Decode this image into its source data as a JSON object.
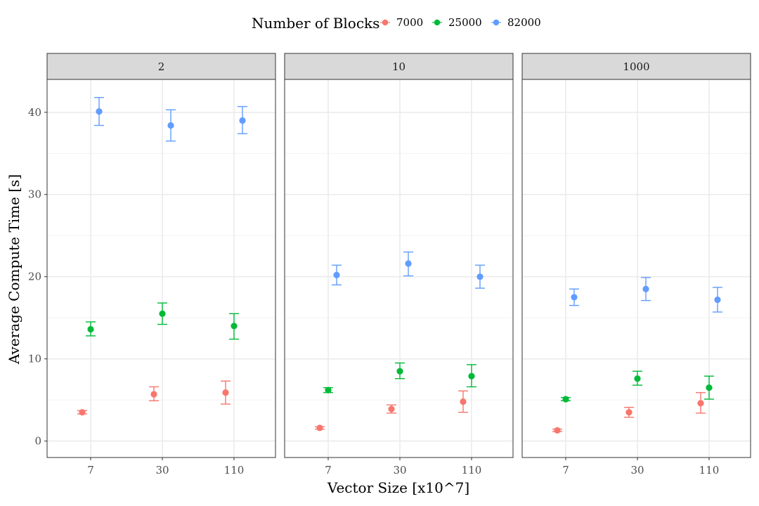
{
  "chart_data": {
    "type": "scatter",
    "legend": {
      "title": "Number of Blocks",
      "position": "top",
      "items": [
        {
          "label": "7000",
          "color": "#F8766D"
        },
        {
          "label": "25000",
          "color": "#00BA38"
        },
        {
          "label": "82000",
          "color": "#619CFF"
        }
      ]
    },
    "xlabel": "Vector Size [x10^7]",
    "ylabel": "Average Compute Time [s]",
    "categories": [
      "7",
      "30",
      "110"
    ],
    "ylim": [
      -2,
      44
    ],
    "yticks": [
      0,
      10,
      20,
      30,
      40
    ],
    "grid": true,
    "panels": [
      {
        "label": "2",
        "series": [
          {
            "legend_index": 0,
            "points": [
              {
                "mean": 3.5,
                "lo": 3.3,
                "hi": 3.7
              },
              {
                "mean": 5.7,
                "lo": 4.9,
                "hi": 6.6
              },
              {
                "mean": 5.9,
                "lo": 4.5,
                "hi": 7.3
              }
            ]
          },
          {
            "legend_index": 1,
            "points": [
              {
                "mean": 13.6,
                "lo": 12.8,
                "hi": 14.5
              },
              {
                "mean": 15.5,
                "lo": 14.2,
                "hi": 16.8
              },
              {
                "mean": 14.0,
                "lo": 12.4,
                "hi": 15.5
              }
            ]
          },
          {
            "legend_index": 2,
            "points": [
              {
                "mean": 40.1,
                "lo": 38.4,
                "hi": 41.8
              },
              {
                "mean": 38.4,
                "lo": 36.5,
                "hi": 40.3
              },
              {
                "mean": 39.0,
                "lo": 37.4,
                "hi": 40.7
              }
            ]
          }
        ]
      },
      {
        "label": "10",
        "series": [
          {
            "legend_index": 0,
            "points": [
              {
                "mean": 1.6,
                "lo": 1.45,
                "hi": 1.75
              },
              {
                "mean": 3.9,
                "lo": 3.4,
                "hi": 4.4
              },
              {
                "mean": 4.8,
                "lo": 3.5,
                "hi": 6.1
              }
            ]
          },
          {
            "legend_index": 1,
            "points": [
              {
                "mean": 6.2,
                "lo": 5.9,
                "hi": 6.5
              },
              {
                "mean": 8.5,
                "lo": 7.6,
                "hi": 9.5
              },
              {
                "mean": 7.9,
                "lo": 6.6,
                "hi": 9.3
              }
            ]
          },
          {
            "legend_index": 2,
            "points": [
              {
                "mean": 20.2,
                "lo": 19.0,
                "hi": 21.4
              },
              {
                "mean": 21.6,
                "lo": 20.1,
                "hi": 23.0
              },
              {
                "mean": 20.0,
                "lo": 18.6,
                "hi": 21.4
              }
            ]
          }
        ]
      },
      {
        "label": "1000",
        "series": [
          {
            "legend_index": 0,
            "points": [
              {
                "mean": 1.3,
                "lo": 1.15,
                "hi": 1.45
              },
              {
                "mean": 3.5,
                "lo": 2.9,
                "hi": 4.1
              },
              {
                "mean": 4.6,
                "lo": 3.4,
                "hi": 5.9
              }
            ]
          },
          {
            "legend_index": 1,
            "points": [
              {
                "mean": 5.1,
                "lo": 4.9,
                "hi": 5.3
              },
              {
                "mean": 7.6,
                "lo": 6.8,
                "hi": 8.5
              },
              {
                "mean": 6.5,
                "lo": 5.1,
                "hi": 7.9
              }
            ]
          },
          {
            "legend_index": 2,
            "points": [
              {
                "mean": 17.5,
                "lo": 16.5,
                "hi": 18.5
              },
              {
                "mean": 18.5,
                "lo": 17.1,
                "hi": 19.9
              },
              {
                "mean": 17.2,
                "lo": 15.7,
                "hi": 18.7
              }
            ]
          }
        ]
      }
    ]
  }
}
